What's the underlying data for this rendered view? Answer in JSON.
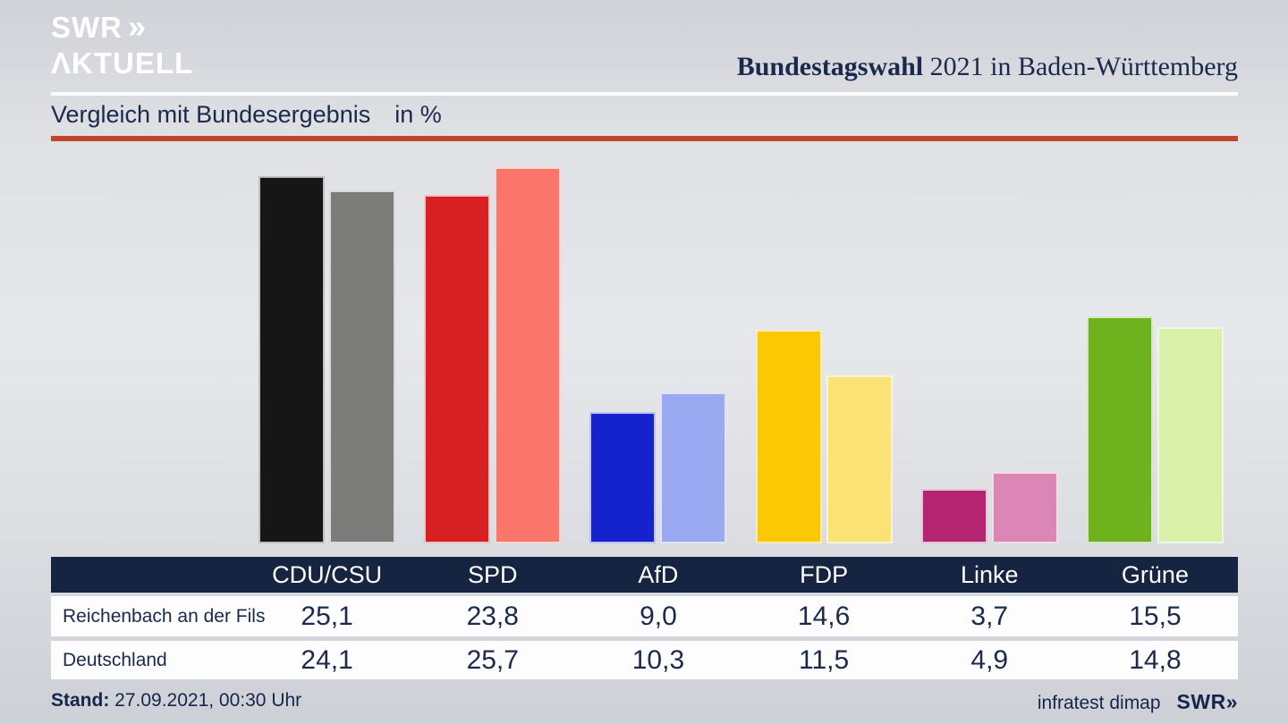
{
  "header": {
    "logo_line1": "SWR",
    "logo_chevrons": "»",
    "logo_line2": "ΛKTUELL",
    "title_bold": "Bundestagswahl",
    "title_rest": " 2021 in Baden-Württemberg"
  },
  "subtitle": {
    "text": "Vergleich mit Bundesergebnis",
    "unit": "in %"
  },
  "chart_data": {
    "type": "bar",
    "title": "Vergleich mit Bundesergebnis in %",
    "categories": [
      "CDU/CSU",
      "SPD",
      "AfD",
      "FDP",
      "Linke",
      "Grüne"
    ],
    "series": [
      {
        "name": "Reichenbach an der Fils",
        "values": [
          25.1,
          23.8,
          9.0,
          14.6,
          3.7,
          15.5
        ]
      },
      {
        "name": "Deutschland",
        "values": [
          24.1,
          25.7,
          10.3,
          11.5,
          4.9,
          14.8
        ]
      }
    ],
    "colors": [
      {
        "party": "CDU/CSU",
        "local": "#161616",
        "federal": "#7c7c7a"
      },
      {
        "party": "SPD",
        "local": "#d62021",
        "federal": "#fb756b"
      },
      {
        "party": "AfD",
        "local": "#1523cd",
        "federal": "#9ba8f2"
      },
      {
        "party": "FDP",
        "local": "#fbc803",
        "federal": "#fbe275"
      },
      {
        "party": "Linke",
        "local": "#b52470",
        "federal": "#db86b5"
      },
      {
        "party": "Grüne",
        "local": "#6eb31e",
        "federal": "#d9f0ab"
      }
    ],
    "ylim": [
      0,
      26
    ],
    "grid": false,
    "legend_position": "none",
    "value_format": "decimal-comma"
  },
  "table": {
    "columns": [
      "CDU/CSU",
      "SPD",
      "AfD",
      "FDP",
      "Linke",
      "Grüne"
    ],
    "rows": [
      {
        "label": "Reichenbach an der Fils",
        "values": [
          "25,1",
          "23,8",
          "9,0",
          "14,6",
          "3,7",
          "15,5"
        ]
      },
      {
        "label": "Deutschland",
        "values": [
          "24,1",
          "25,7",
          "10,3",
          "11,5",
          "4,9",
          "14,8"
        ]
      }
    ]
  },
  "footer": {
    "stand_label": "Stand:",
    "stand_value": " 27.09.2021, 00:30 Uhr",
    "source": "infratest dimap",
    "brand": "SWR»"
  },
  "colors": {
    "accent_red": "#c2462e",
    "navy_text": "#1b2a4c",
    "table_header_bg": "#152440",
    "row_bg": "#fdfdfe",
    "logo_color": "#ffffff"
  }
}
